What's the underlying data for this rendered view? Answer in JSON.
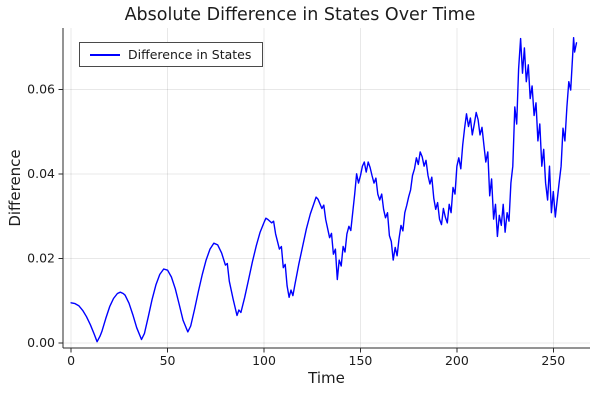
{
  "chart_data": {
    "type": "line",
    "title": "Absolute Difference in States Over Time",
    "xlabel": "Time",
    "ylabel": "Difference",
    "grid": true,
    "legend_position": "top-left",
    "xlim": [
      -4.2,
      269
    ],
    "ylim": [
      -0.0012,
      0.0745
    ],
    "x_ticks": {
      "values": [
        0,
        50,
        100,
        150,
        200,
        250
      ],
      "labels": [
        "0",
        "50",
        "100",
        "150",
        "200",
        "250"
      ]
    },
    "y_ticks": {
      "values": [
        0,
        0.02,
        0.04,
        0.06
      ],
      "labels": [
        "0.00",
        "0.02",
        "0.04",
        "0.06"
      ]
    },
    "colors": {
      "line": "#0000ff",
      "grid": "rgba(0,0,0,0.09)",
      "spine": "#2a2a2a",
      "tick_text": "#1c1c1c",
      "legend_border": "#4a4a4a",
      "background": "#ffffff"
    },
    "series": [
      {
        "name": "Difference in States",
        "color": "#0000ff",
        "points": [
          [
            0,
            0.0095
          ],
          [
            2,
            0.0093
          ],
          [
            4,
            0.0088
          ],
          [
            6,
            0.0077
          ],
          [
            8,
            0.0062
          ],
          [
            10,
            0.0043
          ],
          [
            12,
            0.0021
          ],
          [
            13.5,
            0.0003
          ],
          [
            15,
            0.0016
          ],
          [
            16,
            0.0028
          ],
          [
            18,
            0.0058
          ],
          [
            20,
            0.0086
          ],
          [
            22,
            0.0105
          ],
          [
            24,
            0.0117
          ],
          [
            25.5,
            0.012
          ],
          [
            27,
            0.0117
          ],
          [
            28,
            0.0113
          ],
          [
            30,
            0.0094
          ],
          [
            32,
            0.0067
          ],
          [
            34,
            0.0036
          ],
          [
            36.5,
            0.0008
          ],
          [
            38,
            0.0022
          ],
          [
            40,
            0.0062
          ],
          [
            42,
            0.0103
          ],
          [
            44,
            0.0138
          ],
          [
            46,
            0.0162
          ],
          [
            48,
            0.0175
          ],
          [
            50,
            0.0172
          ],
          [
            52,
            0.0156
          ],
          [
            54,
            0.0128
          ],
          [
            56,
            0.0092
          ],
          [
            58,
            0.0054
          ],
          [
            60.5,
            0.0026
          ],
          [
            62,
            0.004
          ],
          [
            64,
            0.008
          ],
          [
            66,
            0.0122
          ],
          [
            68,
            0.0162
          ],
          [
            70,
            0.0196
          ],
          [
            72,
            0.0222
          ],
          [
            74,
            0.0236
          ],
          [
            76,
            0.0232
          ],
          [
            78,
            0.0213
          ],
          [
            80,
            0.0184
          ],
          [
            81,
            0.0188
          ],
          [
            82,
            0.0146
          ],
          [
            84,
            0.0104
          ],
          [
            86,
            0.0065
          ],
          [
            87,
            0.0078
          ],
          [
            88,
            0.0072
          ],
          [
            90,
            0.0108
          ],
          [
            92,
            0.015
          ],
          [
            94,
            0.0192
          ],
          [
            96,
            0.023
          ],
          [
            98,
            0.0262
          ],
          [
            100,
            0.0285
          ],
          [
            101,
            0.0295
          ],
          [
            102,
            0.0292
          ],
          [
            104,
            0.0284
          ],
          [
            105,
            0.0288
          ],
          [
            106,
            0.0258
          ],
          [
            108,
            0.0222
          ],
          [
            109,
            0.0228
          ],
          [
            110,
            0.0178
          ],
          [
            111,
            0.0186
          ],
          [
            112,
            0.0135
          ],
          [
            113,
            0.0108
          ],
          [
            114,
            0.0125
          ],
          [
            115,
            0.0112
          ],
          [
            116,
            0.0138
          ],
          [
            118,
            0.0185
          ],
          [
            120,
            0.0228
          ],
          [
            122,
            0.027
          ],
          [
            124,
            0.0305
          ],
          [
            126,
            0.0332
          ],
          [
            127,
            0.0345
          ],
          [
            128,
            0.034
          ],
          [
            130,
            0.0318
          ],
          [
            131,
            0.0326
          ],
          [
            132,
            0.0292
          ],
          [
            134,
            0.0249
          ],
          [
            135,
            0.0259
          ],
          [
            136,
            0.021
          ],
          [
            137,
            0.0222
          ],
          [
            138,
            0.015
          ],
          [
            139,
            0.0196
          ],
          [
            140,
            0.0182
          ],
          [
            141,
            0.0228
          ],
          [
            142,
            0.0215
          ],
          [
            143,
            0.0258
          ],
          [
            144,
            0.0276
          ],
          [
            145,
            0.0266
          ],
          [
            146,
            0.0308
          ],
          [
            147,
            0.0352
          ],
          [
            148,
            0.04
          ],
          [
            149,
            0.0378
          ],
          [
            150,
            0.0396
          ],
          [
            151,
            0.0418
          ],
          [
            152,
            0.0428
          ],
          [
            153,
            0.0404
          ],
          [
            154,
            0.0428
          ],
          [
            155,
            0.0415
          ],
          [
            156,
            0.0396
          ],
          [
            157,
            0.0378
          ],
          [
            158,
            0.039
          ],
          [
            159,
            0.0352
          ],
          [
            160,
            0.0338
          ],
          [
            161,
            0.0352
          ],
          [
            162,
            0.0316
          ],
          [
            163,
            0.0296
          ],
          [
            164,
            0.0308
          ],
          [
            165,
            0.0254
          ],
          [
            166,
            0.024
          ],
          [
            167,
            0.0196
          ],
          [
            168,
            0.0226
          ],
          [
            169,
            0.0206
          ],
          [
            170,
            0.0246
          ],
          [
            171,
            0.0278
          ],
          [
            172,
            0.0265
          ],
          [
            173,
            0.0308
          ],
          [
            174,
            0.0325
          ],
          [
            175,
            0.0346
          ],
          [
            176,
            0.0362
          ],
          [
            177,
            0.0396
          ],
          [
            178,
            0.0412
          ],
          [
            179,
            0.0438
          ],
          [
            180,
            0.0422
          ],
          [
            181,
            0.0452
          ],
          [
            182,
            0.044
          ],
          [
            183,
            0.0418
          ],
          [
            184,
            0.0432
          ],
          [
            185,
            0.0396
          ],
          [
            186,
            0.0376
          ],
          [
            187,
            0.0392
          ],
          [
            188,
            0.0342
          ],
          [
            189,
            0.0316
          ],
          [
            190,
            0.0332
          ],
          [
            191,
            0.0293
          ],
          [
            192,
            0.028
          ],
          [
            193,
            0.0318
          ],
          [
            194,
            0.0298
          ],
          [
            195,
            0.0284
          ],
          [
            196,
            0.0328
          ],
          [
            197,
            0.0308
          ],
          [
            198,
            0.0368
          ],
          [
            199,
            0.0352
          ],
          [
            200,
            0.0418
          ],
          [
            201,
            0.0438
          ],
          [
            202,
            0.0412
          ],
          [
            203,
            0.0468
          ],
          [
            204,
            0.0508
          ],
          [
            205,
            0.0542
          ],
          [
            206,
            0.0512
          ],
          [
            207,
            0.0532
          ],
          [
            208,
            0.0492
          ],
          [
            209,
            0.0518
          ],
          [
            210,
            0.0545
          ],
          [
            211,
            0.0528
          ],
          [
            212,
            0.0492
          ],
          [
            213,
            0.051
          ],
          [
            214,
            0.0468
          ],
          [
            215,
            0.0428
          ],
          [
            216,
            0.0452
          ],
          [
            217,
            0.0348
          ],
          [
            218,
            0.0388
          ],
          [
            219,
            0.0293
          ],
          [
            220,
            0.0328
          ],
          [
            221,
            0.0252
          ],
          [
            222,
            0.0302
          ],
          [
            223,
            0.0278
          ],
          [
            224,
            0.0328
          ],
          [
            225,
            0.0262
          ],
          [
            226,
            0.0308
          ],
          [
            227,
            0.0288
          ],
          [
            228,
            0.0378
          ],
          [
            229,
            0.0418
          ],
          [
            230,
            0.0558
          ],
          [
            231,
            0.0518
          ],
          [
            232,
            0.0648
          ],
          [
            233,
            0.072
          ],
          [
            234,
            0.0638
          ],
          [
            235,
            0.0698
          ],
          [
            236,
            0.0618
          ],
          [
            237,
            0.0658
          ],
          [
            238,
            0.0578
          ],
          [
            239,
            0.0608
          ],
          [
            240,
            0.0538
          ],
          [
            241,
            0.0568
          ],
          [
            242,
            0.0478
          ],
          [
            243,
            0.0518
          ],
          [
            244,
            0.0418
          ],
          [
            245,
            0.0458
          ],
          [
            246,
            0.0378
          ],
          [
            247,
            0.0338
          ],
          [
            248,
            0.0418
          ],
          [
            249,
            0.0308
          ],
          [
            250,
            0.0358
          ],
          [
            251,
            0.0298
          ],
          [
            252,
            0.0338
          ],
          [
            253,
            0.0378
          ],
          [
            254,
            0.0418
          ],
          [
            255,
            0.0508
          ],
          [
            256,
            0.0478
          ],
          [
            257,
            0.0558
          ],
          [
            258,
            0.0618
          ],
          [
            259,
            0.0598
          ],
          [
            260,
            0.0678
          ],
          [
            260.5,
            0.0722
          ],
          [
            261,
            0.0688
          ],
          [
            262,
            0.071
          ]
        ]
      }
    ]
  }
}
